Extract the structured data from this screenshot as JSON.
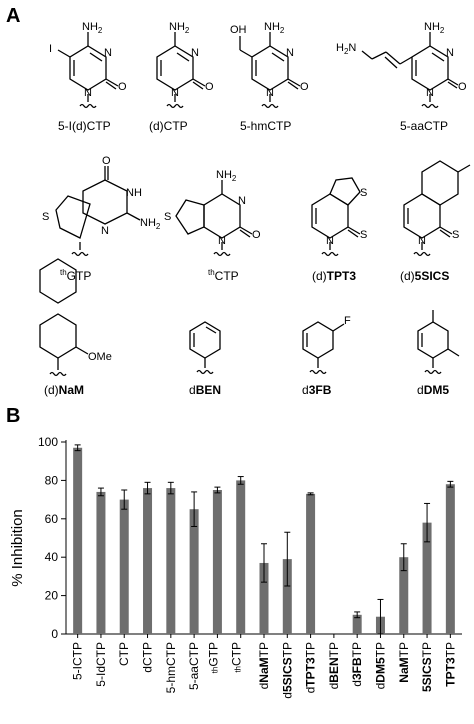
{
  "panel_a": {
    "letter": "A",
    "molecules": [
      {
        "id": "5-I",
        "label": "5-I(d)CTP"
      },
      {
        "id": "dC",
        "label": "(d)CTP"
      },
      {
        "id": "hm",
        "label": "5-hmCTP"
      },
      {
        "id": "aa",
        "label": "5-aaCTP"
      },
      {
        "id": "thG",
        "label_sup": "th",
        "label_rest": "GTP"
      },
      {
        "id": "thC",
        "label_sup": "th",
        "label_rest": "CTP"
      },
      {
        "id": "tpt3",
        "label_pre": "(d)",
        "label_bold": "TPT3"
      },
      {
        "id": "sics",
        "label_pre": "(d)",
        "label_bold": "5SICS"
      },
      {
        "id": "nam",
        "label_pre": "(d)",
        "label_bold": "NaM"
      },
      {
        "id": "ben",
        "label_pre": "d",
        "label_bold": "BEN"
      },
      {
        "id": "3fb",
        "label_pre": "d",
        "label_bold": "3FB"
      },
      {
        "id": "dm5",
        "label_pre": "d",
        "label_bold": "DM5"
      }
    ],
    "atoms": {
      "nh2": "NH",
      "two": "2",
      "n": "N",
      "o": "O",
      "oh": "OH",
      "i": "I",
      "h2n_h": "H",
      "h2n_2": "2",
      "h2n_n": "N",
      "s": "S",
      "nh": "NH",
      "f": "F",
      "ome": "OMe"
    }
  },
  "chart_data": {
    "type": "bar",
    "panel_letter": "B",
    "ylabel": "% Inhibition",
    "ylim": [
      0,
      100
    ],
    "yticks": [
      0,
      20,
      40,
      60,
      80,
      100
    ],
    "bar_color": "#6e6e6e",
    "categories": [
      {
        "segments": [
          {
            "t": "5-ICTP"
          }
        ]
      },
      {
        "segments": [
          {
            "t": "5-IdCTP"
          }
        ]
      },
      {
        "segments": [
          {
            "t": "CTP"
          }
        ]
      },
      {
        "segments": [
          {
            "t": "dCTP"
          }
        ]
      },
      {
        "segments": [
          {
            "t": "5-hmCTP"
          }
        ]
      },
      {
        "segments": [
          {
            "t": "5-aaCTP"
          }
        ]
      },
      {
        "segments": [
          {
            "t": "th",
            "sup": true
          },
          {
            "t": "GTP"
          }
        ]
      },
      {
        "segments": [
          {
            "t": "th",
            "sup": true
          },
          {
            "t": "CTP"
          }
        ]
      },
      {
        "segments": [
          {
            "t": "d"
          },
          {
            "t": "NaM",
            "b": true
          },
          {
            "t": "TP"
          }
        ]
      },
      {
        "segments": [
          {
            "t": "d"
          },
          {
            "t": "5SICS",
            "b": true
          },
          {
            "t": "TP"
          }
        ]
      },
      {
        "segments": [
          {
            "t": "d"
          },
          {
            "t": "TPT3",
            "b": true
          },
          {
            "t": "TP"
          }
        ]
      },
      {
        "segments": [
          {
            "t": "d"
          },
          {
            "t": "BEN",
            "b": true
          },
          {
            "t": "TP"
          }
        ]
      },
      {
        "segments": [
          {
            "t": "d"
          },
          {
            "t": "3FB",
            "b": true
          },
          {
            "t": "TP"
          }
        ]
      },
      {
        "segments": [
          {
            "t": "d"
          },
          {
            "t": "DM5",
            "b": true
          },
          {
            "t": "TP"
          }
        ]
      },
      {
        "segments": [
          {
            "t": "NaM",
            "b": true
          },
          {
            "t": "TP"
          }
        ]
      },
      {
        "segments": [
          {
            "t": "5SICS",
            "b": true
          },
          {
            "t": "TP"
          }
        ]
      },
      {
        "segments": [
          {
            "t": "TPT3",
            "b": true
          },
          {
            "t": "TP"
          }
        ]
      }
    ],
    "values": [
      97,
      74,
      70,
      76,
      76,
      65,
      75,
      80,
      37,
      39,
      73,
      0,
      10,
      9,
      40,
      58,
      78
    ],
    "errors": [
      1.5,
      2,
      5,
      3,
      3,
      9,
      1.5,
      2,
      10,
      14,
      0.5,
      0,
      1.5,
      9,
      7,
      10,
      1.5
    ]
  }
}
